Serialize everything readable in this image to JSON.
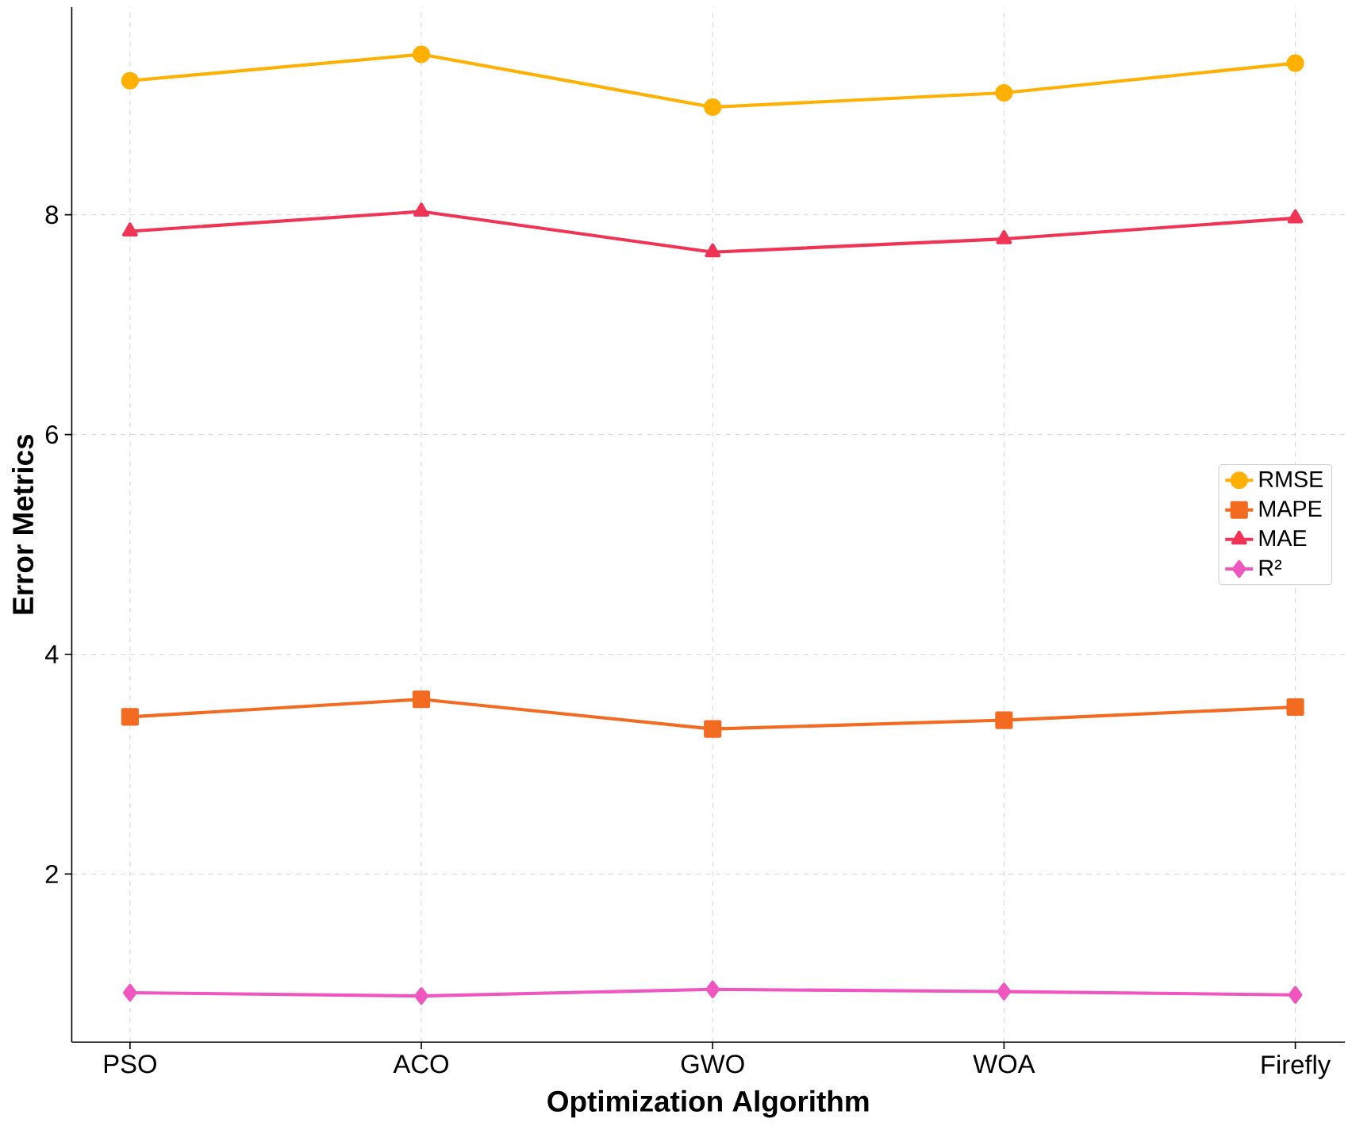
{
  "chart_data": {
    "type": "line",
    "xlabel": "Optimization Algorithm",
    "ylabel": "Error Metrics",
    "categories": [
      "PSO",
      "ACO",
      "GWO",
      "WOA",
      "Firefly"
    ],
    "series": [
      {
        "name": "RMSE",
        "color": "#ffb000",
        "marker": "circle",
        "values": [
          9.22,
          9.46,
          8.98,
          9.11,
          9.38
        ]
      },
      {
        "name": "MAPE",
        "color": "#f26b21",
        "marker": "square",
        "values": [
          3.43,
          3.59,
          3.32,
          3.4,
          3.52
        ]
      },
      {
        "name": "MAE",
        "color": "#f03456",
        "marker": "triangle",
        "values": [
          7.85,
          8.03,
          7.66,
          7.78,
          7.97
        ]
      },
      {
        "name": "R²",
        "color": "#f056c0",
        "marker": "diamond",
        "values": [
          0.92,
          0.89,
          0.95,
          0.93,
          0.9
        ]
      }
    ],
    "ylim": [
      0.47,
      9.89
    ],
    "yticks": [
      2,
      4,
      6,
      8
    ],
    "grid": true,
    "legend": "right",
    "line_style": "solid"
  }
}
